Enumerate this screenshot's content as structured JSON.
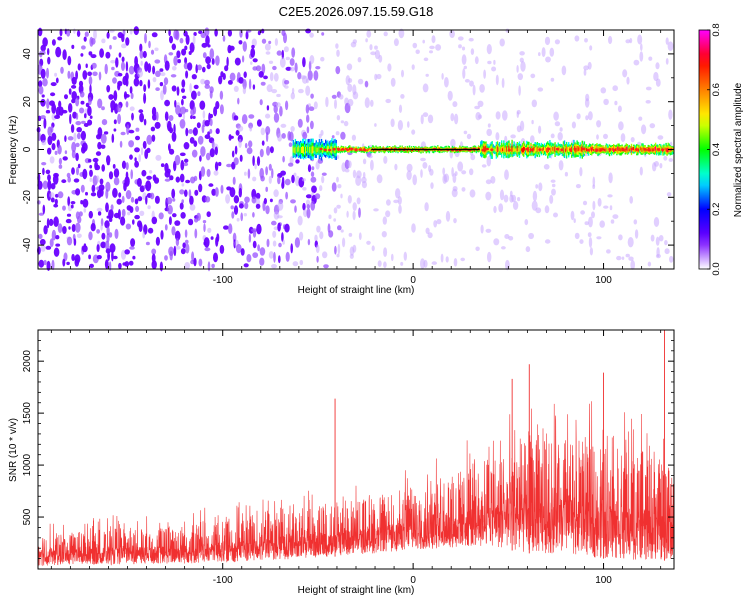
{
  "title": "C2E5.2026.097.15.59.G18",
  "colors": {
    "snr_line": "#f03030",
    "trace": "#000000"
  },
  "chart_data": [
    {
      "type": "heatmap",
      "xlabel": "Height of straight line (km)",
      "ylabel": "Frequency (Hz)",
      "xlim": [
        -197,
        137
      ],
      "ylim": [
        -50,
        50
      ],
      "xticks": [
        -100,
        0,
        100
      ],
      "xtick_labels": [
        "-100",
        "0",
        "100"
      ],
      "yticks": [
        -40,
        -20,
        0,
        20,
        40
      ],
      "ytick_labels": [
        "-40",
        "-20",
        "0",
        "20",
        "40"
      ],
      "grid": false,
      "colorbar": {
        "label": "Normalized spectral amplitude",
        "range": [
          0,
          0.8
        ],
        "ticks": [
          0,
          0.2,
          0.4,
          0.6,
          0.8
        ],
        "tick_labels": [
          "0.0",
          "0.2",
          "0.4",
          "0.6",
          "0.8"
        ],
        "colormap": [
          "#ffffff",
          "#7000ff",
          "#0000ff",
          "#00ffff",
          "#00ff00",
          "#ffff00",
          "#ff8000",
          "#ff0000",
          "#ff00ff"
        ]
      },
      "noise_density": {
        "x": [
          -197,
          -120,
          -60,
          -30,
          0,
          137
        ],
        "density": [
          0.9,
          0.8,
          0.55,
          0.35,
          0.25,
          0.22
        ]
      },
      "signal_band": {
        "x_start": -63,
        "x_end": 137,
        "frequency": 0,
        "peak_amplitude": 0.8
      }
    },
    {
      "type": "line",
      "xlabel": "Height of straight line (km)",
      "ylabel": "SNR (10 * v/v)",
      "xlim": [
        -197,
        137
      ],
      "ylim": [
        0,
        2300
      ],
      "xticks": [
        -100,
        0,
        100
      ],
      "xtick_labels": [
        "-100",
        "0",
        "100"
      ],
      "yticks": [
        500,
        1000,
        1500,
        2000
      ],
      "ytick_labels": [
        "500",
        "1000",
        "1500",
        "2000"
      ],
      "grid": false,
      "series": [
        {
          "x": [
            -197,
            -180,
            -160,
            -140,
            -120,
            -100,
            -80,
            -60,
            -40,
            -20,
            0,
            20,
            40,
            60,
            80,
            100,
            120,
            137
          ],
          "low": [
            30,
            40,
            40,
            50,
            50,
            60,
            80,
            100,
            120,
            150,
            180,
            200,
            220,
            150,
            150,
            100,
            80,
            80
          ],
          "high": [
            450,
            450,
            520,
            520,
            560,
            620,
            680,
            760,
            820,
            880,
            1000,
            1150,
            1400,
            1600,
            1650,
            1600,
            1500,
            1300
          ]
        }
      ],
      "spikes": [
        {
          "x": -41,
          "y": 1640
        },
        {
          "x": 52,
          "y": 1830
        },
        {
          "x": 61,
          "y": 1970
        },
        {
          "x": 100,
          "y": 1890
        },
        {
          "x": 132,
          "y": 2300
        }
      ]
    }
  ]
}
